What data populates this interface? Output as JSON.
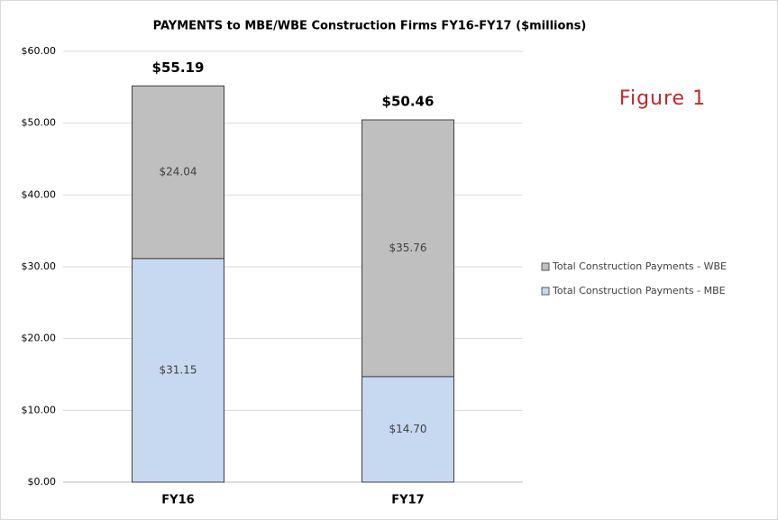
{
  "chart_data": {
    "type": "stacked_bar",
    "title": "PAYMENTS to MBE/WBE Construction Firms FY16-FY17 ($millions)",
    "annotation": "Figure 1",
    "categories": [
      "FY16",
      "FY17"
    ],
    "series": [
      {
        "name": "Total Construction Payments - MBE",
        "color": "#c6d9f1",
        "values": [
          31.15,
          14.7
        ],
        "value_labels": [
          "$31.15",
          "$14.70"
        ]
      },
      {
        "name": "Total Construction Payments - WBE",
        "color": "#bfbfbf",
        "values": [
          24.04,
          35.76
        ],
        "value_labels": [
          "$24.04",
          "$35.76"
        ]
      }
    ],
    "totals": [
      55.19,
      50.46
    ],
    "total_labels": [
      "$55.19",
      "$50.46"
    ],
    "ylim": [
      0,
      60
    ],
    "yticks": [
      {
        "value": 0,
        "label": "$0.00"
      },
      {
        "value": 10,
        "label": "$10.00"
      },
      {
        "value": 20,
        "label": "$20.00"
      },
      {
        "value": 30,
        "label": "$30.00"
      },
      {
        "value": 40,
        "label": "$40.00"
      },
      {
        "value": 50,
        "label": "$50.00"
      },
      {
        "value": 60,
        "label": "$60.00"
      }
    ],
    "grid": true
  }
}
